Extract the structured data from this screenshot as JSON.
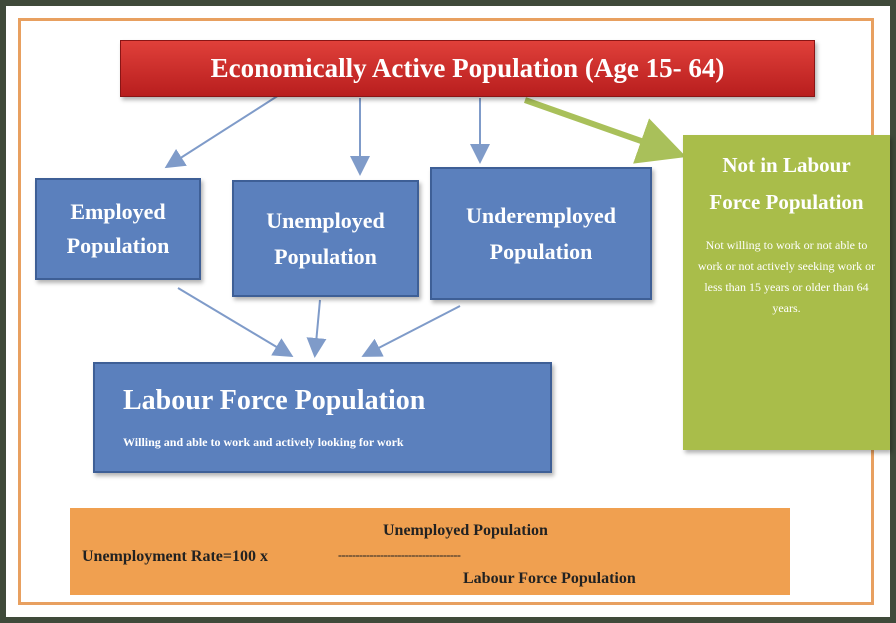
{
  "title": "Economically Active Population (Age 15- 64)",
  "nodes": [
    {
      "label": "Employed Population"
    },
    {
      "label": "Unemployed Population"
    },
    {
      "label": "Underemployed Population"
    },
    {
      "label": "Labour Force Population",
      "description": "Willing and able to work and actively looking for work"
    },
    {
      "label": "Not in Labour Force Population",
      "description": "Not willing to work or not able to work or not actively seeking work or less than 15 years or older than 64 years."
    }
  ],
  "formula": {
    "lhs": "Unemployment Rate=100 x",
    "numerator": "Unemployed Population",
    "divider": "-----------------------------------",
    "denominator": "Labour Force Population"
  }
}
